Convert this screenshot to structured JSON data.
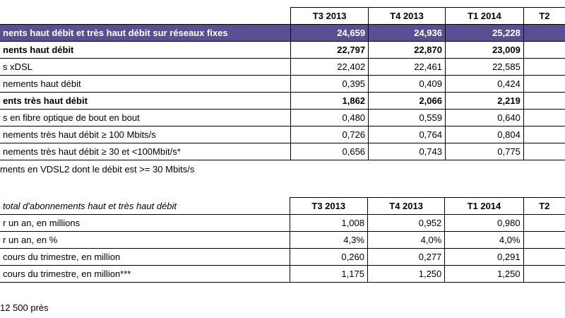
{
  "table1": {
    "columns": [
      "T3 2013",
      "T4 2013",
      "T1 2014",
      "T2"
    ],
    "rows": [
      {
        "label": "nents haut débit et très haut débit sur réseaux fixes",
        "values": [
          "24,659",
          "24,936",
          "25,228",
          ""
        ],
        "style": "purple"
      },
      {
        "label": "nents haut débit",
        "values": [
          "22,797",
          "22,870",
          "23,009",
          ""
        ],
        "style": "bold"
      },
      {
        "label": "s xDSL",
        "values": [
          "22,402",
          "22,461",
          "22,585",
          ""
        ],
        "style": ""
      },
      {
        "label": "nements haut débit",
        "values": [
          "0,395",
          "0,409",
          "0,424",
          ""
        ],
        "style": ""
      },
      {
        "label": "ents très haut débit",
        "values": [
          "1,862",
          "2,066",
          "2,219",
          ""
        ],
        "style": "bold"
      },
      {
        "label": "s en fibre optique de bout en bout",
        "values": [
          "0,480",
          "0,559",
          "0,640",
          ""
        ],
        "style": ""
      },
      {
        "label": "nements très haut débit ≥ 100 Mbits/s",
        "values": [
          "0,726",
          "0,764",
          "0,804",
          ""
        ],
        "style": ""
      },
      {
        "label": "nements très haut débit ≥ 30 et <100Mbit/s*",
        "values": [
          "0,656",
          "0,743",
          "0,775",
          ""
        ],
        "style": ""
      }
    ],
    "footnote": "ments en VDSL2 dont  le débit est >= 30 Mbits/s"
  },
  "table2": {
    "title": "total d'abonnements haut et très haut débit",
    "columns": [
      "T3 2013",
      "T4 2013",
      "T1 2014",
      "T2"
    ],
    "rows": [
      {
        "label": "r un an, en millions",
        "values": [
          "1,008",
          "0,952",
          "0,980",
          ""
        ]
      },
      {
        "label": "r un an, en %",
        "values": [
          "4,3%",
          "4,0%",
          "4,0%",
          ""
        ]
      },
      {
        "label": "cours du trimestre, en million",
        "values": [
          "0,260",
          "0,277",
          "0,291",
          ""
        ]
      },
      {
        "label": "cours du trimestre, en million***",
        "values": [
          "1,175",
          "1,250",
          "1,250",
          ""
        ]
      }
    ],
    "footnote": "12 500 près"
  }
}
